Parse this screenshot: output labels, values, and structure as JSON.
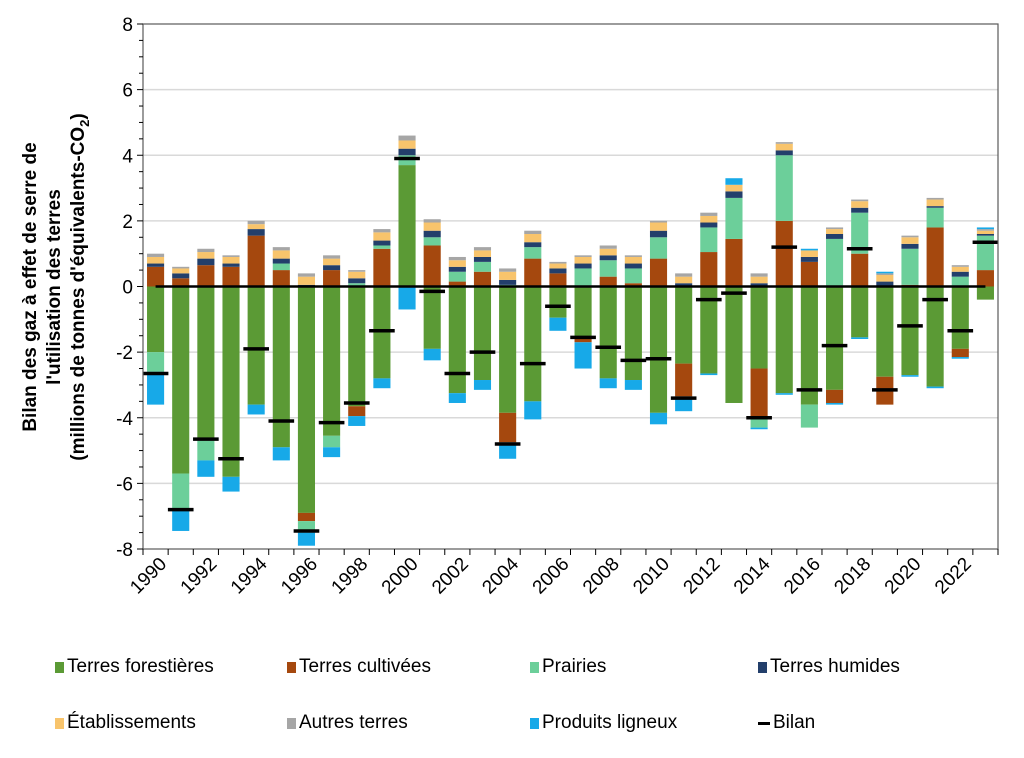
{
  "chart_data": {
    "type": "bar",
    "stacked": true,
    "title": "",
    "xlabel": "",
    "ylabel_lines": [
      "Bilan des gaz à effet de serre de",
      "l'utilisation des terres",
      "(millions de tonnes d'équivalents-CO"
    ],
    "ylabel_subscript": "2",
    "ylabel_suffix": ")",
    "ylim": [
      -8,
      8
    ],
    "yticks": [
      -8,
      -6,
      -4,
      -2,
      0,
      2,
      4,
      6,
      8
    ],
    "ytick_labels": [
      "-8",
      "-6",
      "-4",
      "-2",
      "0",
      "2",
      "4",
      "6",
      "8"
    ],
    "grid": true,
    "x": [
      1990,
      1991,
      1992,
      1993,
      1994,
      1995,
      1996,
      1997,
      1998,
      1999,
      2000,
      2001,
      2002,
      2003,
      2004,
      2005,
      2006,
      2007,
      2008,
      2009,
      2010,
      2011,
      2012,
      2013,
      2014,
      2015,
      2016,
      2017,
      2018,
      2019,
      2020,
      2021,
      2022,
      2023
    ],
    "xtick_labels": [
      "1990",
      "1992",
      "1994",
      "1996",
      "1998",
      "2000",
      "2002",
      "2004",
      "2006",
      "2008",
      "2010",
      "2012",
      "2014",
      "2016",
      "2018",
      "2020",
      "2022"
    ],
    "series": [
      {
        "name": "Terres forestières",
        "color": "#5b9a35",
        "values": [
          -2.0,
          -5.7,
          -4.7,
          -5.8,
          -3.6,
          -4.9,
          -6.9,
          -4.55,
          -3.65,
          -2.8,
          3.7,
          -1.9,
          -3.25,
          -2.85,
          -3.85,
          -3.5,
          -0.95,
          -1.55,
          -2.8,
          -2.85,
          -3.85,
          -2.35,
          -2.65,
          -3.55,
          -2.5,
          -3.25,
          -3.6,
          -3.15,
          -1.55,
          -2.75,
          -2.7,
          -3.05,
          -1.9,
          -0.4
        ]
      },
      {
        "name": "Terres cultivées",
        "color": "#a5480e",
        "values": [
          0.6,
          0.25,
          0.65,
          0.6,
          1.55,
          0.5,
          -0.25,
          0.5,
          -0.3,
          1.15,
          0.0,
          1.25,
          0.15,
          0.45,
          -0.9,
          0.85,
          0.4,
          -0.15,
          0.3,
          0.1,
          0.85,
          -1.0,
          1.05,
          1.45,
          -1.5,
          2.0,
          0.75,
          -0.4,
          1.0,
          -0.85,
          0.05,
          1.8,
          -0.25,
          0.5
        ]
      },
      {
        "name": "Prairies",
        "color": "#6ccf9a",
        "values": [
          -0.6,
          -1.1,
          -0.6,
          0.0,
          0.0,
          0.2,
          -0.35,
          -0.35,
          0.1,
          0.1,
          0.3,
          0.25,
          0.3,
          0.3,
          0.05,
          0.35,
          0.0,
          0.55,
          0.5,
          0.45,
          0.65,
          0.0,
          0.75,
          1.25,
          -0.3,
          2.0,
          -0.7,
          1.45,
          1.25,
          0.0,
          1.1,
          0.6,
          0.3,
          1.05
        ]
      },
      {
        "name": "Terres humides",
        "color": "#233f6b",
        "values": [
          0.1,
          0.15,
          0.2,
          0.1,
          0.2,
          0.15,
          0.05,
          0.15,
          0.15,
          0.15,
          0.2,
          0.2,
          0.15,
          0.15,
          0.15,
          0.15,
          0.15,
          0.15,
          0.15,
          0.15,
          0.2,
          0.1,
          0.15,
          0.2,
          0.1,
          0.15,
          0.15,
          0.15,
          0.15,
          0.15,
          0.15,
          0.05,
          0.15,
          0.05
        ]
      },
      {
        "name": "Établissements",
        "color": "#f8c46c",
        "values": [
          0.2,
          0.15,
          0.2,
          0.2,
          0.15,
          0.25,
          0.25,
          0.2,
          0.2,
          0.25,
          0.25,
          0.25,
          0.2,
          0.2,
          0.25,
          0.25,
          0.15,
          0.2,
          0.2,
          0.2,
          0.25,
          0.2,
          0.2,
          0.2,
          0.2,
          0.2,
          0.2,
          0.15,
          0.2,
          0.2,
          0.2,
          0.2,
          0.15,
          0.1
        ]
      },
      {
        "name": "Autres terres",
        "color": "#a6a6a6",
        "values": [
          0.1,
          0.05,
          0.1,
          0.05,
          0.1,
          0.1,
          0.1,
          0.1,
          0.05,
          0.1,
          0.15,
          0.1,
          0.1,
          0.1,
          0.1,
          0.1,
          0.05,
          0.05,
          0.1,
          0.05,
          0.05,
          0.1,
          0.1,
          0.0,
          0.1,
          0.05,
          0.0,
          0.05,
          0.05,
          0.05,
          0.05,
          0.05,
          0.05,
          0.05
        ]
      },
      {
        "name": "Produits ligneux",
        "color": "#17a9e8",
        "values": [
          -1.0,
          -0.65,
          -0.5,
          -0.45,
          -0.3,
          -0.4,
          -0.4,
          -0.3,
          -0.3,
          -0.3,
          -0.7,
          -0.35,
          -0.3,
          -0.3,
          -0.5,
          -0.55,
          -0.4,
          -0.8,
          -0.3,
          -0.3,
          -0.35,
          -0.45,
          -0.05,
          0.2,
          -0.05,
          -0.05,
          0.05,
          -0.05,
          -0.05,
          0.05,
          -0.05,
          -0.05,
          -0.05,
          0.05
        ]
      }
    ],
    "bilan": {
      "name": "Bilan",
      "color": "#000000",
      "values": [
        -2.65,
        -6.8,
        -4.65,
        -5.25,
        -1.9,
        -4.1,
        -7.45,
        -4.15,
        -3.55,
        -1.35,
        3.9,
        -0.15,
        -2.65,
        -2.0,
        -4.8,
        -2.35,
        -0.6,
        -1.55,
        -1.85,
        -2.25,
        -2.2,
        -3.4,
        -0.4,
        -0.2,
        -4.0,
        1.2,
        -3.15,
        -1.8,
        1.15,
        -3.15,
        -1.2,
        -0.4,
        -1.35,
        1.35
      ]
    },
    "legend": {
      "placement": "bottom",
      "rows": [
        [
          "Terres forestières",
          "Terres cultivées",
          "Prairies",
          "Terres humides"
        ],
        [
          "Établissements",
          "Autres terres",
          "Produits ligneux",
          "Bilan"
        ]
      ]
    }
  }
}
